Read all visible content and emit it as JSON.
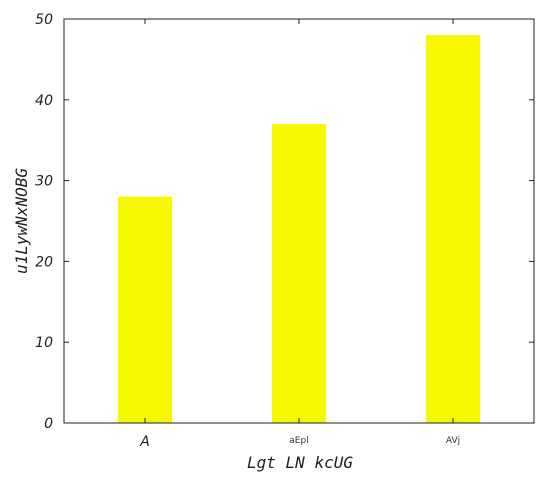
{
  "chart_data": {
    "type": "bar",
    "categories": [
      "A",
      "aEpl",
      "AVj"
    ],
    "values": [
      28,
      37,
      48
    ],
    "xlabel": "Lgt LN  kcUG",
    "ylabel": "u1LywNxNOBG",
    "ylim": [
      0,
      50
    ],
    "yticks": [
      0,
      10,
      20,
      30,
      40,
      50
    ],
    "bar_color": "#f7f700",
    "grid": false,
    "legend": "none"
  }
}
